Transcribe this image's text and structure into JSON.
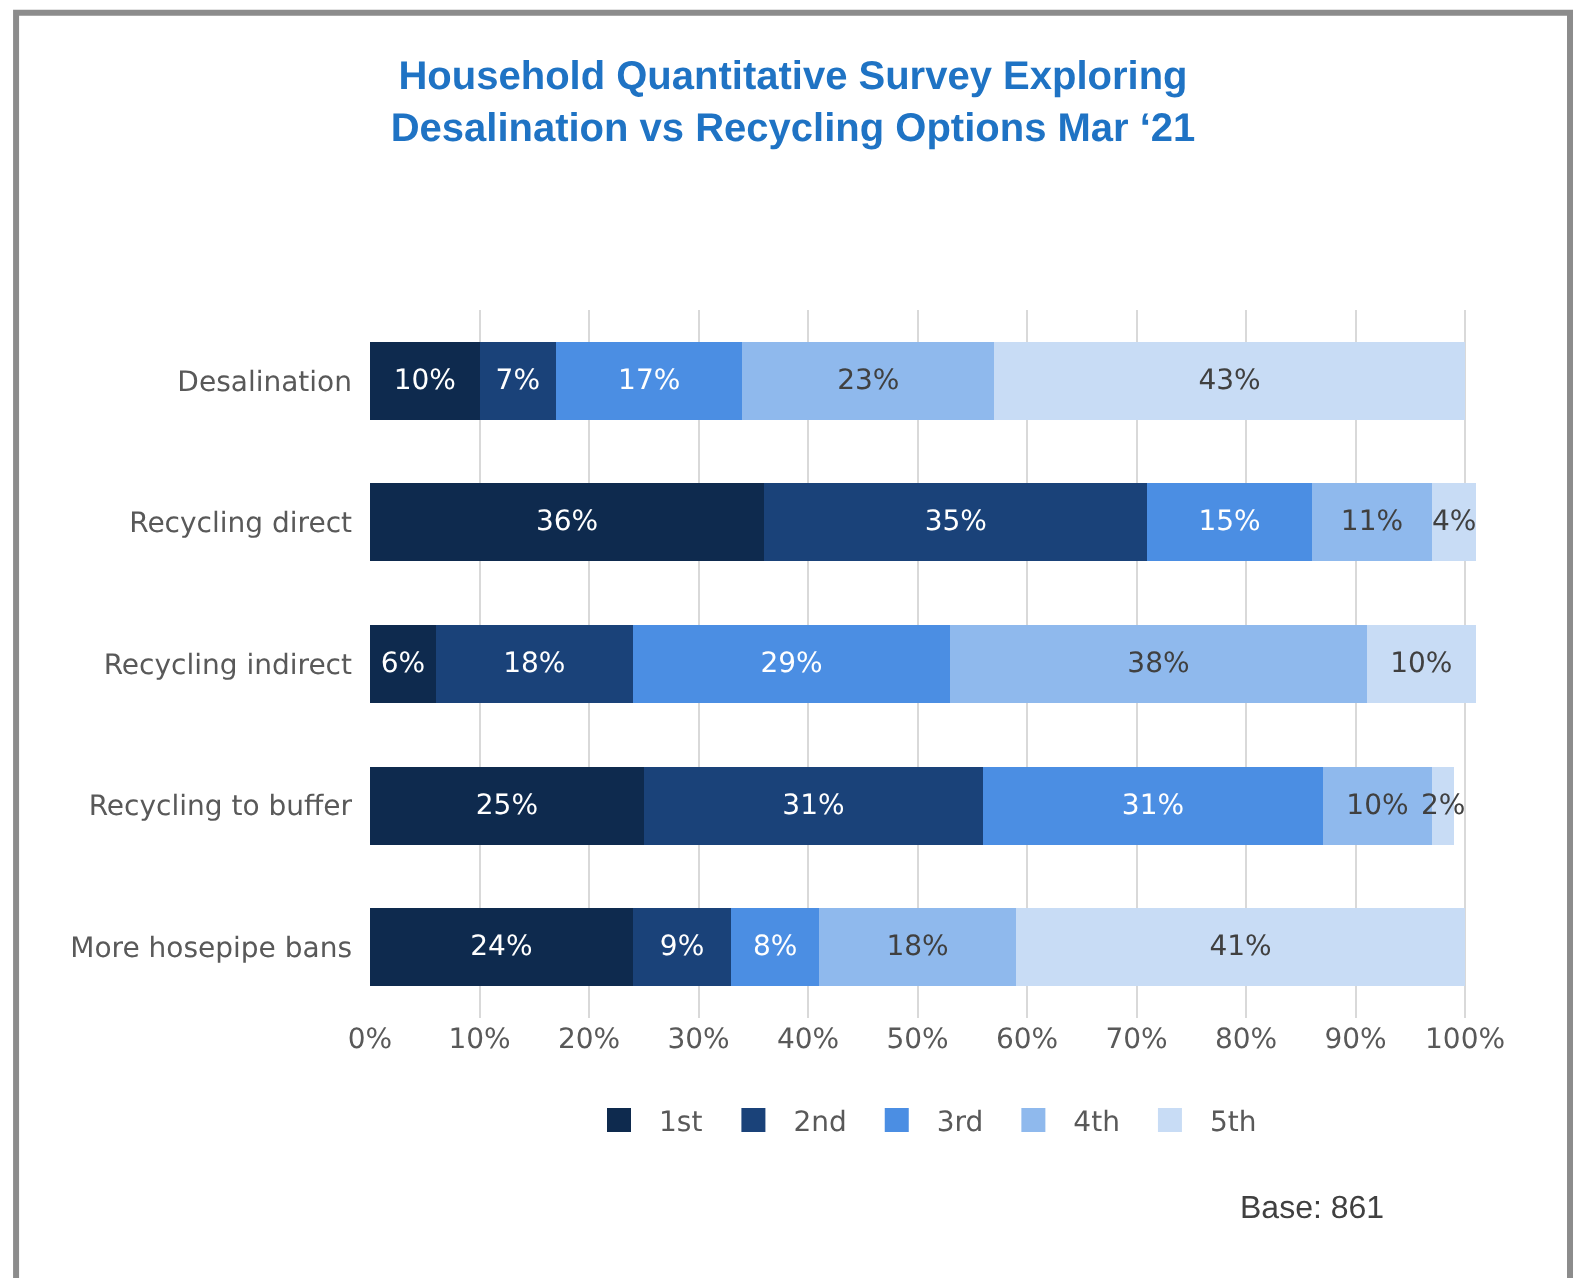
{
  "chart_data": {
    "type": "bar",
    "orientation": "horizontal",
    "stacked": true,
    "title": "Household Quantitative Survey Exploring\nDesalination vs Recycling Options Mar ‘21",
    "categories": [
      "Desalination",
      "Recycling direct",
      "Recycling indirect",
      "Recycling to buffer",
      "More hosepipe bans"
    ],
    "series": [
      {
        "name": "1st",
        "color": "#0e2a4e",
        "values": [
          10,
          36,
          6,
          25,
          24
        ],
        "value_labels": [
          "10%",
          "36%",
          "6%",
          "25%",
          "24%"
        ]
      },
      {
        "name": "2nd",
        "color": "#1a4279",
        "values": [
          7,
          35,
          18,
          31,
          9
        ],
        "value_labels": [
          "7%",
          "35%",
          "18%",
          "31%",
          "9%"
        ]
      },
      {
        "name": "3rd",
        "color": "#4b8ee3",
        "values": [
          17,
          15,
          29,
          31,
          8
        ],
        "value_labels": [
          "17%",
          "15%",
          "29%",
          "31%",
          "8%"
        ]
      },
      {
        "name": "4th",
        "color": "#8fb9ed",
        "values": [
          23,
          11,
          38,
          10,
          18
        ],
        "value_labels": [
          "23%",
          "11%",
          "38%",
          "10%",
          "18%"
        ]
      },
      {
        "name": "5th",
        "color": "#c8dcf5",
        "values": [
          43,
          4,
          10,
          2,
          41
        ],
        "value_labels": [
          "43%",
          "4%",
          "10%",
          "2%",
          "41%"
        ]
      }
    ],
    "xlim": [
      0,
      101
    ],
    "xticks": [
      {
        "value": 0,
        "label": "0%"
      },
      {
        "value": 10,
        "label": "10%"
      },
      {
        "value": 20,
        "label": "20%"
      },
      {
        "value": 30,
        "label": "30%"
      },
      {
        "value": 40,
        "label": "40%"
      },
      {
        "value": 50,
        "label": "50%"
      },
      {
        "value": 60,
        "label": "60%"
      },
      {
        "value": 70,
        "label": "70%"
      },
      {
        "value": 80,
        "label": "80%"
      },
      {
        "value": 90,
        "label": "90%"
      },
      {
        "value": 100,
        "label": "100%"
      }
    ],
    "grid": "x",
    "legend": "bottom",
    "annotations": [
      "Base: 861"
    ]
  }
}
